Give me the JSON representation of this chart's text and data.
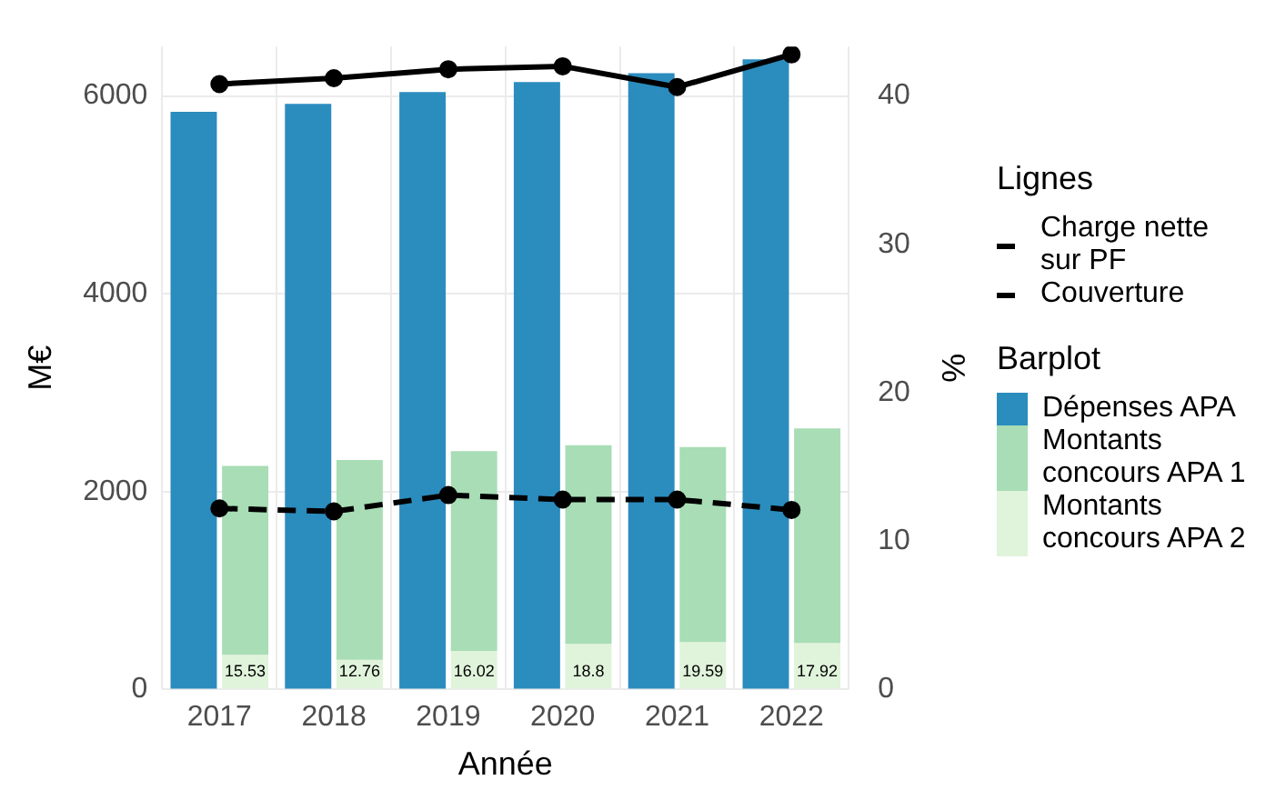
{
  "chart_data": {
    "type": "bar",
    "xlabel": "Année",
    "ylabel": "M€",
    "y2label": "%",
    "legend_title": "Lignes",
    "annotations": [
      "Barplot",
      {
        "text": "15.53",
        "x": "2017",
        "y": 180
      },
      {
        "text": "12.76",
        "x": "2018",
        "y": 180
      },
      {
        "text": "16.02",
        "x": "2019",
        "y": 180
      },
      {
        "text": "18.8",
        "x": "2020",
        "y": 180
      },
      {
        "text": "19.59",
        "x": "2021",
        "y": 180
      },
      {
        "text": "17.92",
        "x": "2022",
        "y": 180
      }
    ],
    "categories": [
      "2017",
      "2018",
      "2019",
      "2020",
      "2021",
      "2022"
    ],
    "ylim": [
      0,
      6500
    ],
    "yticks": [
      0,
      2000,
      4000,
      6000
    ],
    "y2lim": [
      0,
      43.33
    ],
    "y2ticks": [
      0,
      10,
      20,
      30,
      40
    ],
    "grid": true,
    "legend": "right",
    "marker": "circle",
    "series": [
      {
        "name": "Charge nette sur PF",
        "type": "line",
        "axis": "y2",
        "color": "#000000",
        "line_style": "solid",
        "values": [
          40.8,
          41.2,
          41.8,
          42.0,
          40.6,
          42.8
        ]
      },
      {
        "name": "Couverture",
        "type": "line",
        "axis": "y2",
        "color": "#000000",
        "line_style": "dashed",
        "values": [
          12.2,
          12.0,
          13.1,
          12.8,
          12.8,
          12.1
        ]
      },
      {
        "name": "Dépenses APA",
        "color": "#2b8cbe",
        "values": [
          5840,
          5920,
          6040,
          6140,
          6230,
          6370
        ]
      },
      {
        "name": "Montants concours APA 1",
        "color": "#a8ddb5",
        "base": [
          350,
          300,
          390,
          460,
          480,
          470
        ],
        "values": [
          1910,
          2020,
          2020,
          2010,
          1970,
          2170
        ]
      },
      {
        "name": "Montants concours APA 2",
        "color": "#e0f3db",
        "values": [
          350,
          300,
          390,
          460,
          480,
          470
        ]
      }
    ]
  }
}
